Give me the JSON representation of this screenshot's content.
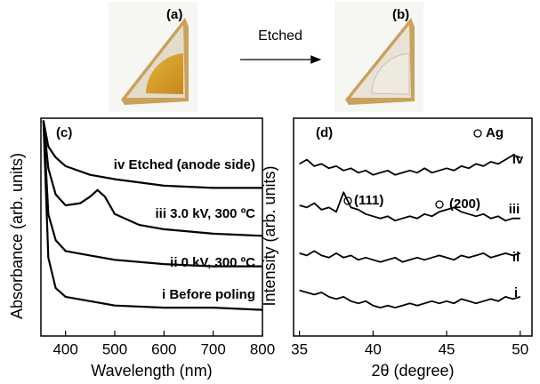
{
  "photos": {
    "labels": [
      "(a)",
      "(b)"
    ],
    "arrow_label": "Etched"
  },
  "chart_data": [
    {
      "type": "line",
      "xlabel": "Wavelength (nm)",
      "ylabel": "Absorbance (arb. units)",
      "xlim": [
        350,
        800
      ],
      "xticks": [
        400,
        500,
        600,
        700,
        800
      ],
      "ylim": [
        0,
        10
      ],
      "annotations": [
        "(c)",
        "iv Etched (anode side)",
        "iii 3.0 kV, 300 ºC",
        "ii 0 kV, 300 ºC",
        "i Before poling"
      ],
      "series": [
        {
          "color": "#000000",
          "x": [
            355,
            365,
            380,
            400,
            450,
            500,
            600,
            700,
            800
          ],
          "values": [
            9.9,
            8.7,
            8.2,
            7.8,
            7.4,
            7.2,
            6.9,
            6.8,
            6.8
          ]
        },
        {
          "color": "#000000",
          "x": [
            355,
            365,
            380,
            400,
            430,
            450,
            465,
            480,
            500,
            550,
            600,
            700,
            800
          ],
          "values": [
            9.9,
            7.7,
            6.5,
            6.0,
            6.1,
            6.4,
            6.7,
            6.4,
            5.6,
            5.1,
            4.9,
            4.7,
            4.6
          ]
        },
        {
          "color": "#000000",
          "x": [
            355,
            365,
            380,
            400,
            450,
            500,
            600,
            700,
            800
          ],
          "values": [
            9.9,
            5.6,
            4.4,
            3.9,
            3.7,
            3.5,
            3.3,
            3.2,
            3.2
          ]
        },
        {
          "color": "#000000",
          "x": [
            355,
            365,
            380,
            400,
            450,
            500,
            600,
            700,
            800
          ],
          "values": [
            9.9,
            3.6,
            2.2,
            1.8,
            1.6,
            1.4,
            1.3,
            1.3,
            1.2
          ]
        }
      ]
    },
    {
      "type": "line",
      "xlabel": "2θ (degree)",
      "ylabel": "Intensity (arb. units)",
      "xlim": [
        34.6,
        50.8
      ],
      "xticks": [
        35,
        40,
        45,
        50
      ],
      "ylim": [
        0,
        10
      ],
      "annotations": [
        "(d)",
        "Ag",
        "(111)",
        "(200)",
        "iv",
        "iii",
        "ii",
        "i"
      ],
      "x": [
        35,
        35.5,
        36,
        36.5,
        37,
        37.5,
        38,
        38.5,
        39,
        39.5,
        40,
        40.5,
        41,
        41.5,
        42,
        42.5,
        43,
        43.5,
        44,
        44.5,
        45,
        45.5,
        46,
        46.5,
        47,
        47.5,
        48,
        48.5,
        49,
        49.5,
        50
      ],
      "series": [
        {
          "color": "#000000",
          "values": [
            7.9,
            8.1,
            7.8,
            7.9,
            7.7,
            7.8,
            7.6,
            7.7,
            7.5,
            7.6,
            7.4,
            7.5,
            7.6,
            7.4,
            7.5,
            7.6,
            7.5,
            7.7,
            7.5,
            7.6,
            7.7,
            7.6,
            7.8,
            7.7,
            7.9,
            7.8,
            8.0,
            7.9,
            8.1,
            8.3,
            8.2
          ]
        },
        {
          "color": "#000000",
          "values": [
            6.0,
            5.9,
            6.1,
            5.8,
            5.9,
            5.7,
            6.6,
            5.9,
            5.8,
            5.6,
            5.5,
            5.4,
            5.5,
            5.3,
            5.4,
            5.5,
            5.4,
            5.6,
            5.5,
            5.7,
            5.8,
            5.9,
            5.7,
            5.6,
            5.5,
            5.6,
            5.4,
            5.5,
            5.3,
            5.4,
            5.4
          ]
        },
        {
          "color": "#000000",
          "values": [
            3.8,
            3.7,
            3.9,
            3.7,
            3.6,
            3.8,
            3.6,
            3.7,
            3.5,
            3.6,
            3.5,
            3.4,
            3.5,
            3.6,
            3.4,
            3.5,
            3.6,
            3.5,
            3.6,
            3.7,
            3.6,
            3.5,
            3.7,
            3.6,
            3.7,
            3.8,
            3.6,
            3.7,
            3.8,
            3.7,
            3.8
          ]
        },
        {
          "color": "#000000",
          "values": [
            2.1,
            2.0,
            1.9,
            2.0,
            1.8,
            1.7,
            1.8,
            1.6,
            1.5,
            1.6,
            1.4,
            1.3,
            1.4,
            1.3,
            1.4,
            1.5,
            1.4,
            1.5,
            1.6,
            1.5,
            1.6,
            1.5,
            1.7,
            1.6,
            1.5,
            1.6,
            1.7,
            1.6,
            1.8,
            1.7,
            1.8
          ]
        }
      ]
    }
  ]
}
